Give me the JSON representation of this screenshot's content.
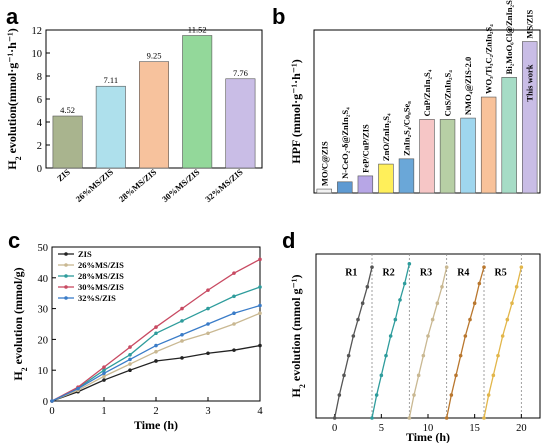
{
  "chart_data": [
    {
      "panel": "a",
      "type": "bar",
      "ylabel": "H2 evolution(mmol·g⁻¹·h⁻¹)",
      "ylim": [
        0,
        12
      ],
      "yticks": [
        0,
        2,
        4,
        6,
        8,
        10,
        12
      ],
      "categories": [
        "ZIS",
        "26%MS/ZIS",
        "28%MS/ZIS",
        "30%MS/ZIS",
        "32%MS/ZIS"
      ],
      "values": [
        4.52,
        7.11,
        9.25,
        11.52,
        7.76
      ],
      "value_labels": [
        "4.52",
        "7.11",
        "9.25",
        "11.52",
        "7.76"
      ],
      "colors": [
        "#a9b48e",
        "#aee0ec",
        "#f7c29d",
        "#93d89a",
        "#c9bde6"
      ]
    },
    {
      "panel": "b",
      "type": "bar",
      "ylabel": "HPF  (mmol·g⁻¹·h⁻¹)",
      "categories": [
        "MO/C@ZIS",
        "N-CeO₂-δ@ZnIn₂S₄",
        "FeP/CuP/ZIS",
        "ZnO/ZnIn₂S₄",
        "ZnIn₂S₄/Co₉Se₈",
        "CuP/ZnIn₂S₄",
        "CuS/ZnIn₂S₄",
        "NMO₄@ZIS-2.0",
        "WO₃/Ti₃C₂/ZnIn₂S₄",
        "Bi₂MoO₆Cl@ZnIn₂S₄",
        "MS/ZIS"
      ],
      "annotation": "This work",
      "values": [
        0.3,
        0.85,
        1.3,
        2.2,
        2.6,
        5.6,
        5.6,
        5.7,
        7.3,
        8.8,
        11.52
      ],
      "colors": [
        "#f2f2f2",
        "#5e9ad2",
        "#b7a6e6",
        "#ffef5a",
        "#6aa7d8",
        "#f6c6c6",
        "#b7cfa5",
        "#9fd6ee",
        "#f8c29a",
        "#a6dcc6",
        "#c9bde6"
      ],
      "highlight_color": "#e2333a"
    },
    {
      "panel": "c",
      "type": "line",
      "xlabel": "Time (h)",
      "ylabel": "H2 evolution (mmol/g)",
      "xlim": [
        0,
        4
      ],
      "ylim": [
        0,
        50
      ],
      "xticks": [
        0,
        1,
        2,
        3,
        4
      ],
      "yticks": [
        0,
        10,
        20,
        30,
        40,
        50
      ],
      "x": [
        0,
        0.5,
        1,
        1.5,
        2,
        2.5,
        3,
        3.5,
        4
      ],
      "series": [
        {
          "name": "ZIS",
          "color": "#222222",
          "values": [
            0,
            3,
            6.8,
            10,
            13,
            14,
            15.5,
            16.5,
            18
          ]
        },
        {
          "name": "26%MS/ZIS",
          "color": "#c9b892",
          "values": [
            0,
            3.5,
            8,
            12,
            16,
            19.5,
            22,
            25,
            28.5
          ]
        },
        {
          "name": "28%MS/ZIS",
          "color": "#2e9c9c",
          "values": [
            0,
            4.2,
            10,
            15,
            22,
            26,
            30,
            34,
            37
          ]
        },
        {
          "name": "30%MS/ZIS",
          "color": "#c84a62",
          "values": [
            0,
            4.5,
            11,
            17.5,
            24,
            30,
            36,
            41.5,
            46
          ]
        },
        {
          "name": "32%S/ZIS",
          "color": "#3a7cc8",
          "values": [
            0,
            4,
            9,
            13.5,
            18,
            21.5,
            25,
            28.5,
            31
          ]
        }
      ]
    },
    {
      "panel": "d",
      "type": "line",
      "xlabel": "Time (h)",
      "ylabel": "H2 evolution (mmol g⁻¹)",
      "xlim": [
        -2,
        22
      ],
      "xticks": [
        0,
        5,
        10,
        15,
        20
      ],
      "dividers": [
        4,
        8,
        12,
        16,
        20
      ],
      "runs": [
        {
          "label": "R1",
          "color": "#555555",
          "x": [
            0,
            0.5,
            1,
            1.5,
            2,
            2.5,
            3,
            3.5,
            4
          ],
          "values": [
            0,
            7,
            13,
            19,
            25,
            30,
            35,
            40,
            46
          ]
        },
        {
          "label": "R2",
          "color": "#2e9c9c",
          "x": [
            4,
            4.5,
            5,
            5.5,
            6,
            6.5,
            7,
            7.5,
            8
          ],
          "values": [
            0,
            7,
            13,
            19,
            25,
            30,
            36,
            41,
            47
          ]
        },
        {
          "label": "R3",
          "color": "#c9b892",
          "x": [
            8,
            8.5,
            9,
            9.5,
            10,
            10.5,
            11,
            11.5,
            12
          ],
          "values": [
            0,
            7,
            13,
            19,
            25,
            30,
            35,
            40,
            46
          ]
        },
        {
          "label": "R4",
          "color": "#b9772e",
          "x": [
            12,
            12.5,
            13,
            13.5,
            14,
            14.5,
            15,
            15.5,
            16
          ],
          "values": [
            0,
            7,
            13,
            19,
            25,
            30,
            35,
            41,
            46
          ]
        },
        {
          "label": "R5",
          "color": "#e2b64a",
          "x": [
            16,
            16.5,
            17,
            17.5,
            18,
            18.5,
            19,
            19.5,
            20
          ],
          "values": [
            0,
            7,
            13,
            19,
            25,
            30,
            35,
            40,
            46
          ]
        }
      ],
      "ylim": [
        0,
        50
      ]
    }
  ],
  "labels": {
    "a": "a",
    "b": "b",
    "c": "c",
    "d": "d"
  }
}
